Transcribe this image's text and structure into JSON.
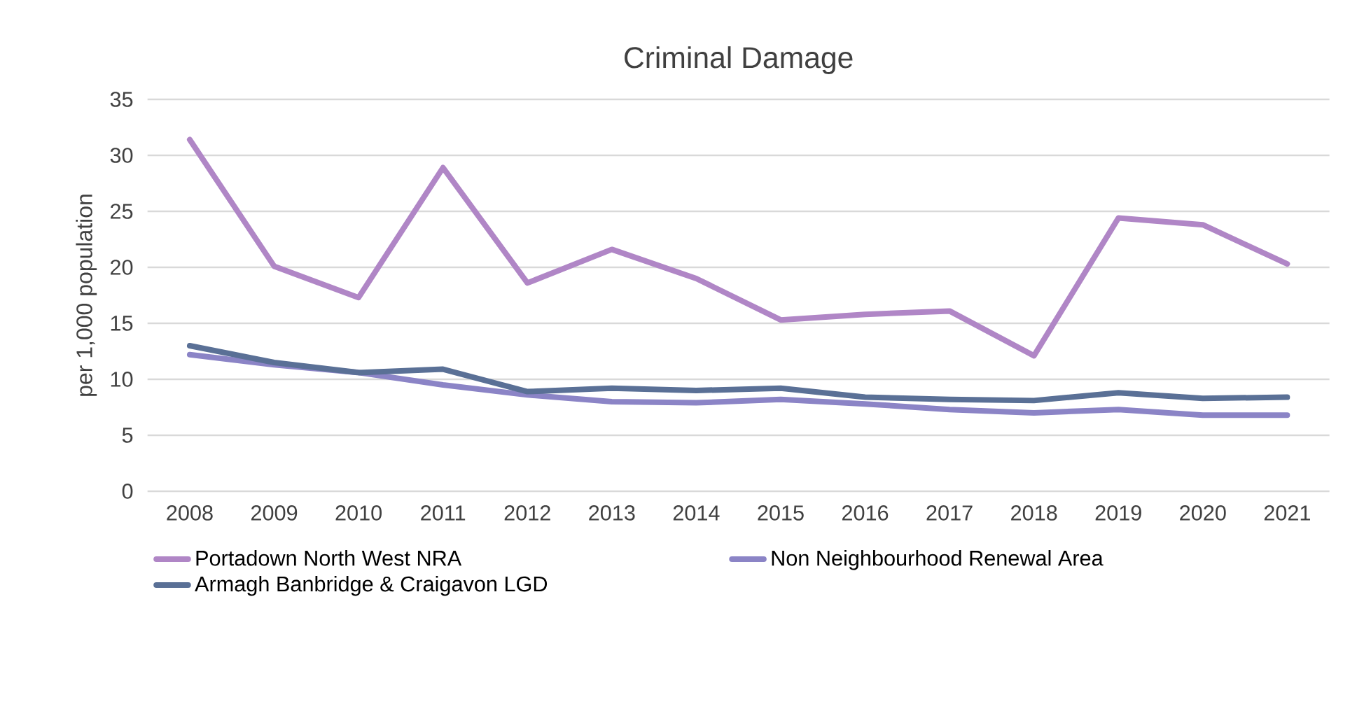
{
  "chart_data": {
    "type": "line",
    "title": "Criminal Damage",
    "ylabel": "per 1,000 population",
    "categories": [
      "2008",
      "2009",
      "2010",
      "2011",
      "2012",
      "2013",
      "2014",
      "2015",
      "2016",
      "2017",
      "2018",
      "2019",
      "2020",
      "2021"
    ],
    "series": [
      {
        "name": "Portadown North West NRA",
        "color": "#b086c6",
        "values": [
          31.4,
          20.1,
          17.3,
          28.9,
          18.6,
          21.6,
          19.0,
          15.3,
          15.8,
          16.1,
          12.1,
          24.4,
          23.8,
          20.3
        ]
      },
      {
        "name": "Non Neighbourhood Renewal Area",
        "color": "#8b84c6",
        "values": [
          12.2,
          11.3,
          10.6,
          9.5,
          8.6,
          8.0,
          7.9,
          8.2,
          7.8,
          7.3,
          7.0,
          7.3,
          6.8,
          6.8
        ]
      },
      {
        "name": "Armagh Banbridge & Craigavon LGD",
        "color": "#5a7096",
        "values": [
          13.0,
          11.5,
          10.6,
          10.9,
          8.9,
          9.2,
          9.0,
          9.2,
          8.4,
          8.2,
          8.1,
          8.8,
          8.3,
          8.4
        ]
      }
    ],
    "ylim": [
      0,
      35
    ],
    "yticks": [
      0,
      5,
      10,
      15,
      20,
      25,
      30,
      35
    ],
    "grid": "y",
    "legend": "bottom",
    "marker": "none",
    "line_style": "solid"
  }
}
